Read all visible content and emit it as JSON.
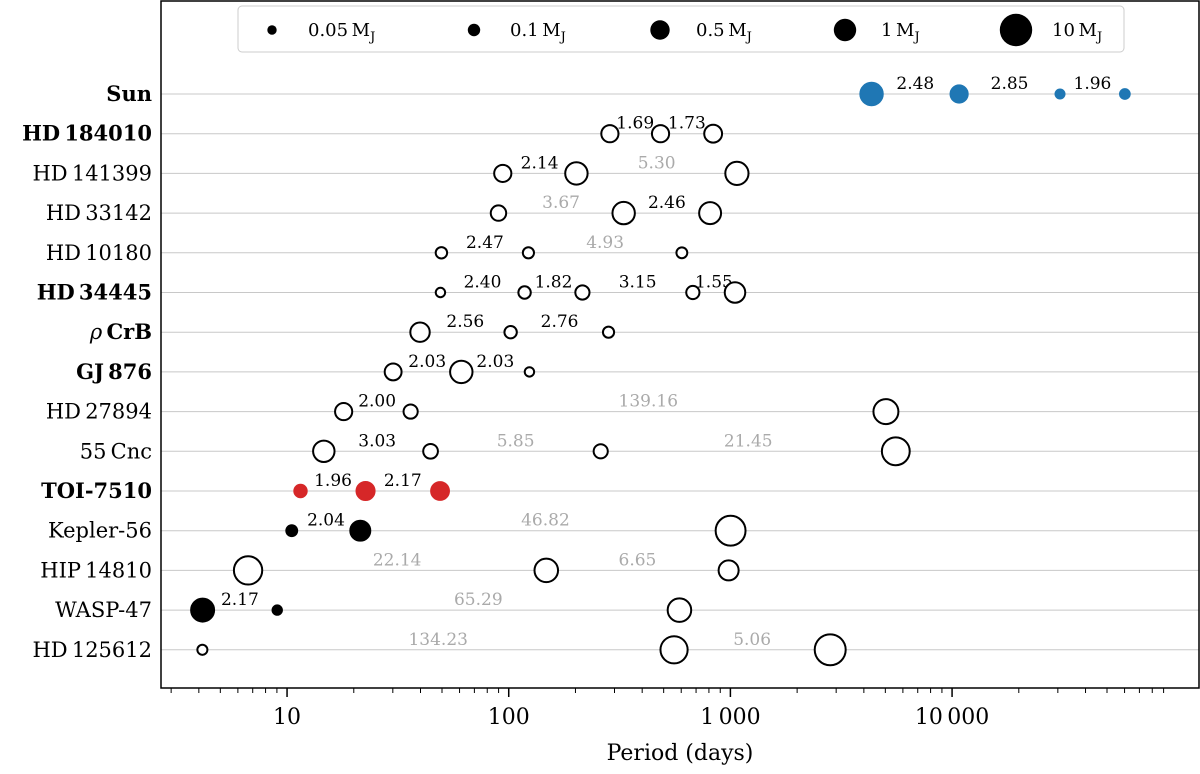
{
  "chart_data": {
    "type": "scatter",
    "xlabel": "Period (days)",
    "xscale": "log",
    "xlim": [
      2.7,
      130000
    ],
    "x_ticks": [
      10,
      100,
      1000,
      10000
    ],
    "x_tick_labels": [
      "10",
      "100",
      "1 000",
      "10 000"
    ],
    "grid": "horizontal",
    "size_unit": "M_J",
    "legend": {
      "placement": "top-center",
      "entries": [
        {
          "label": "0.05",
          "mass": 0.05
        },
        {
          "label": "0.1",
          "mass": 0.1
        },
        {
          "label": "0.5",
          "mass": 0.5
        },
        {
          "label": "1",
          "mass": 1
        },
        {
          "label": "10",
          "mass": 10
        }
      ]
    },
    "series": [
      {
        "name": "Sun",
        "prefix": "",
        "main": "Sun",
        "bold": true,
        "color": "#1f77b4",
        "filled": true,
        "planets": [
          {
            "period": 4333,
            "mass": 1.0
          },
          {
            "period": 10759,
            "mass": 0.3
          },
          {
            "period": 30687,
            "mass": 0.046
          },
          {
            "period": 60190,
            "mass": 0.054
          }
        ],
        "ratios": [
          {
            "text": "2.48",
            "grey": false
          },
          {
            "text": "2.85",
            "grey": false
          },
          {
            "text": "1.96",
            "grey": false
          }
        ]
      },
      {
        "name": "HD 184010",
        "prefix": "",
        "main": "HD 184010",
        "bold": true,
        "color": "#000000",
        "filled": false,
        "planets": [
          {
            "period": 286,
            "mass": 0.3
          },
          {
            "period": 484,
            "mass": 0.3
          },
          {
            "period": 836,
            "mass": 0.35
          }
        ],
        "ratios": [
          {
            "text": "1.69",
            "grey": false
          },
          {
            "text": "1.73",
            "grey": false
          }
        ]
      },
      {
        "name": "HD 141399",
        "prefix": "",
        "main": "HD 141399",
        "bold": false,
        "color": "#000000",
        "filled": false,
        "planets": [
          {
            "period": 94,
            "mass": 0.3
          },
          {
            "period": 202,
            "mass": 1.0
          },
          {
            "period": 1070,
            "mass": 1.2
          }
        ],
        "ratios": [
          {
            "text": "2.14",
            "grey": false
          },
          {
            "text": "5.30",
            "grey": true
          }
        ]
      },
      {
        "name": "HD 33142",
        "prefix": "",
        "main": "HD 33142",
        "bold": false,
        "color": "#000000",
        "filled": false,
        "planets": [
          {
            "period": 89.9,
            "mass": 0.2
          },
          {
            "period": 330,
            "mass": 1.0
          },
          {
            "period": 810,
            "mass": 0.9
          }
        ],
        "ratios": [
          {
            "text": "3.67",
            "grey": true
          },
          {
            "text": "2.46",
            "grey": false
          }
        ]
      },
      {
        "name": "HD 10180",
        "prefix": "",
        "main": "HD 10180",
        "bold": false,
        "color": "#000000",
        "filled": false,
        "planets": [
          {
            "period": 49.7,
            "mass": 0.08
          },
          {
            "period": 122.7,
            "mass": 0.075
          },
          {
            "period": 604,
            "mass": 0.07
          }
        ],
        "ratios": [
          {
            "text": "2.47",
            "grey": false
          },
          {
            "text": "4.93",
            "grey": true
          }
        ]
      },
      {
        "name": "HD 34445",
        "prefix": "",
        "main": "HD 34445",
        "bold": true,
        "color": "#000000",
        "filled": false,
        "planets": [
          {
            "period": 49.2,
            "mass": 0.05
          },
          {
            "period": 117.9,
            "mass": 0.1
          },
          {
            "period": 215,
            "mass": 0.15
          },
          {
            "period": 677,
            "mass": 0.12
          },
          {
            "period": 1049,
            "mass": 0.65
          }
        ],
        "ratios": [
          {
            "text": "2.40",
            "grey": false
          },
          {
            "text": "1.82",
            "grey": false
          },
          {
            "text": "3.15",
            "grey": false
          },
          {
            "text": "1.55",
            "grey": false
          }
        ]
      },
      {
        "name": "ρ CrB",
        "prefix": "ρ ",
        "main": "CrB",
        "bold": true,
        "color": "#000000",
        "filled": false,
        "planets": [
          {
            "period": 39.8,
            "mass": 0.5
          },
          {
            "period": 102,
            "mass": 0.1
          },
          {
            "period": 282,
            "mass": 0.075
          }
        ],
        "ratios": [
          {
            "text": "2.56",
            "grey": false
          },
          {
            "text": "2.76",
            "grey": false
          }
        ]
      },
      {
        "name": "GJ 876",
        "prefix": "",
        "main": "GJ 876",
        "bold": true,
        "color": "#000000",
        "filled": false,
        "planets": [
          {
            "period": 30.1,
            "mass": 0.28
          },
          {
            "period": 61.1,
            "mass": 1.0
          },
          {
            "period": 124,
            "mass": 0.05
          }
        ],
        "ratios": [
          {
            "text": "2.03",
            "grey": false
          },
          {
            "text": "2.03",
            "grey": false
          }
        ]
      },
      {
        "name": "HD 27894",
        "prefix": "",
        "main": "HD 27894",
        "bold": false,
        "color": "#000000",
        "filled": false,
        "planets": [
          {
            "period": 18.0,
            "mass": 0.3
          },
          {
            "period": 36.1,
            "mass": 0.15
          },
          {
            "period": 5030,
            "mass": 1.8
          }
        ],
        "ratios": [
          {
            "text": "2.00",
            "grey": false
          },
          {
            "text": "139.16",
            "grey": true
          }
        ]
      },
      {
        "name": "55 Cnc",
        "prefix": "",
        "main": "55 Cnc",
        "bold": false,
        "color": "#000000",
        "filled": false,
        "planets": [
          {
            "period": 14.65,
            "mass": 0.8
          },
          {
            "period": 44.4,
            "mass": 0.17
          },
          {
            "period": 260,
            "mass": 0.15
          },
          {
            "period": 5574,
            "mass": 3.5
          }
        ],
        "ratios": [
          {
            "text": "3.03",
            "grey": false
          },
          {
            "text": "5.85",
            "grey": true
          },
          {
            "text": "21.45",
            "grey": true
          }
        ]
      },
      {
        "name": "TOI-7510",
        "prefix": "",
        "main": "TOI-7510",
        "bold": true,
        "color": "#d62728",
        "filled": true,
        "planets": [
          {
            "period": 11.5,
            "mass": 0.1
          },
          {
            "period": 22.6,
            "mass": 0.37
          },
          {
            "period": 49.0,
            "mass": 0.35
          }
        ],
        "ratios": [
          {
            "text": "1.96",
            "grey": false
          },
          {
            "text": "2.17",
            "grey": false
          }
        ]
      },
      {
        "name": "Kepler-56",
        "prefix": "",
        "main": "Kepler-56",
        "bold": false,
        "color": "#000000",
        "filled": true,
        "planets": [
          {
            "period": 10.5,
            "mass": 0.07
          },
          {
            "period": 21.4,
            "mass": 0.57
          }
        ],
        "ratios": [
          {
            "text": "2.04",
            "grey": false
          }
        ]
      },
      {
        "name": "Kepler-56 outer",
        "prefix": "",
        "main": "",
        "bold": false,
        "color": "#000000",
        "filled": false,
        "planets": [
          {
            "period": 1002,
            "mass": 5.6
          }
        ],
        "ratios": [
          {
            "text": "46.82",
            "grey": true
          }
        ]
      },
      {
        "name": "HIP 14810",
        "prefix": "",
        "main": "HIP 14810",
        "bold": false,
        "color": "#000000",
        "filled": false,
        "planets": [
          {
            "period": 6.67,
            "mass": 3.9
          },
          {
            "period": 147.7,
            "mass": 1.3
          },
          {
            "period": 981.8,
            "mass": 0.58
          }
        ],
        "ratios": [
          {
            "text": "22.14",
            "grey": true
          },
          {
            "text": "6.65",
            "grey": true
          }
        ]
      },
      {
        "name": "WASP-47",
        "prefix": "",
        "main": "WASP-47",
        "bold": false,
        "color": "#000000",
        "filled": true,
        "planets": [
          {
            "period": 4.16,
            "mass": 1.14
          },
          {
            "period": 9.03,
            "mass": 0.05
          }
        ],
        "ratios": [
          {
            "text": "2.17",
            "grey": false
          }
        ]
      },
      {
        "name": "WASP-47 outer",
        "prefix": "",
        "main": "",
        "bold": false,
        "color": "#000000",
        "filled": false,
        "planets": [
          {
            "period": 589,
            "mass": 1.3
          }
        ],
        "ratios": [
          {
            "text": "65.29",
            "grey": true
          }
        ]
      },
      {
        "name": "HD 125612",
        "prefix": "",
        "main": "HD 125612",
        "bold": false,
        "color": "#000000",
        "filled": false,
        "planets": [
          {
            "period": 4.15,
            "mass": 0.058
          },
          {
            "period": 557,
            "mass": 3.0
          },
          {
            "period": 2820,
            "mass": 7.2
          }
        ],
        "ratios": [
          {
            "text": "134.23",
            "grey": true
          },
          {
            "text": "5.06",
            "grey": true
          }
        ]
      }
    ]
  }
}
